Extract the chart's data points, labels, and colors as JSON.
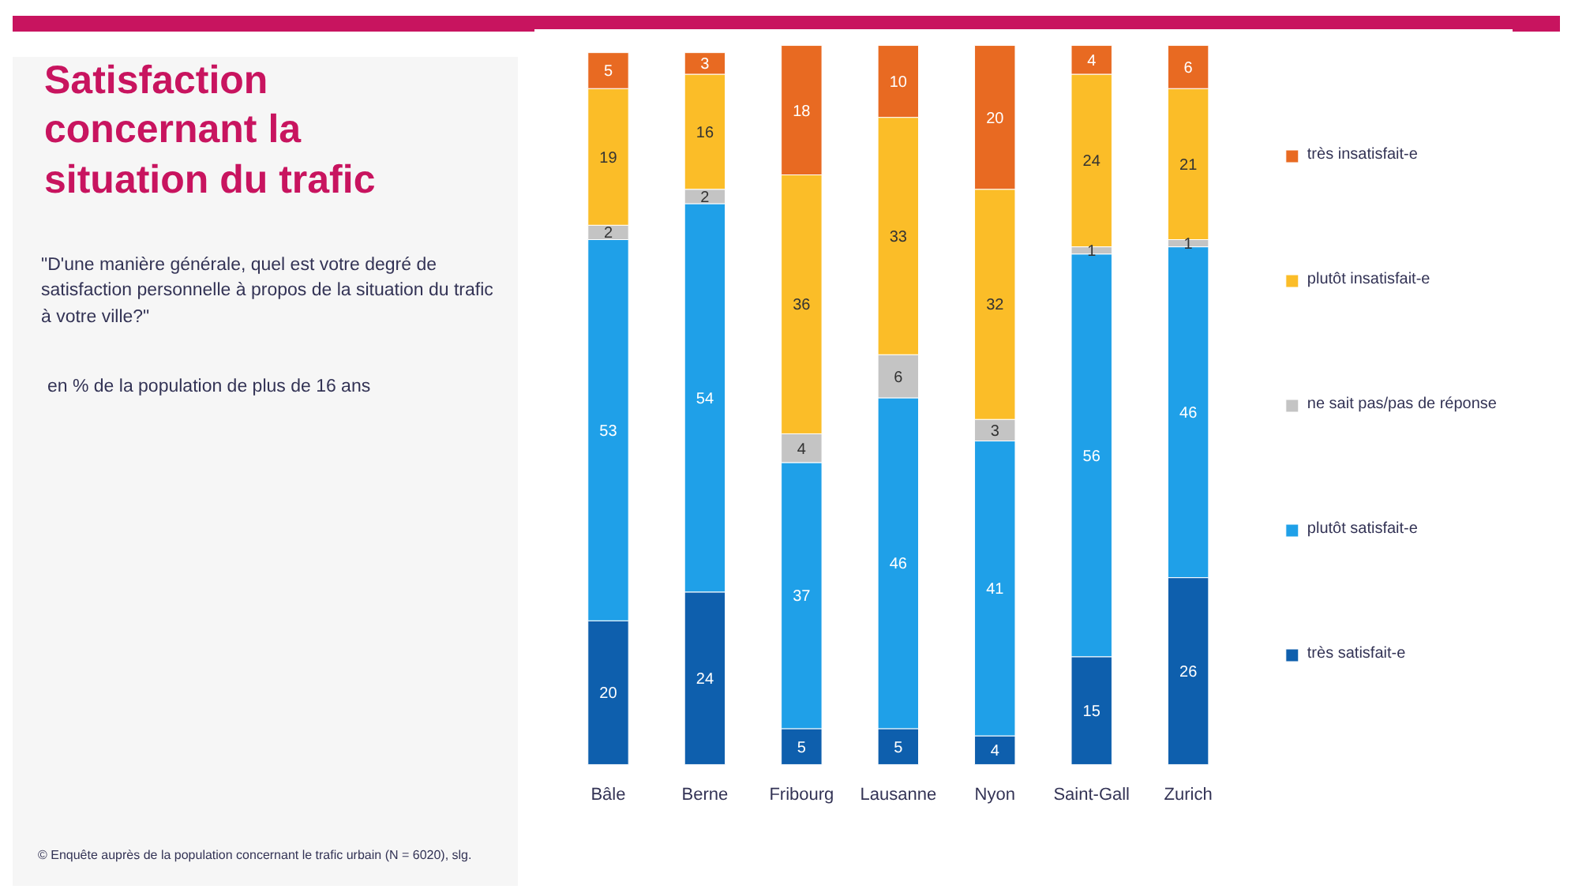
{
  "chart_data": {
    "type": "bar",
    "stacked": true,
    "data_labels": true,
    "legend": "right",
    "grid": false,
    "title": "Satisfaction concernant la situation du trafic",
    "subtitle": "\"D'une manière générale, quel est votre degré de satisfaction personnelle à propos de la situation du trafic à votre ville?\"",
    "annotations": [
      "en % de la population de plus de 16 ans",
      "© Enquête auprès de la population concernant le trafic urbain (N = 6020), slg."
    ],
    "categories": [
      "Bâle",
      "Berne",
      "Fribourg",
      "Lausanne",
      "Nyon",
      "Saint-Gall",
      "Zurich"
    ],
    "series": [
      {
        "name": "très satisfait-e",
        "color": "#0e5fad",
        "values": [
          20,
          24,
          5,
          5,
          4,
          15,
          26
        ]
      },
      {
        "name": "plutôt satisfait-e",
        "color": "#1fa0e8",
        "values": [
          53,
          54,
          37,
          46,
          41,
          56,
          46
        ]
      },
      {
        "name": "ne sait pas/pas de réponse",
        "color": "#c4c4c4",
        "values": [
          2,
          2,
          4,
          6,
          3,
          1,
          1
        ]
      },
      {
        "name": "plutôt insatisfait-e",
        "color": "#fbbd28",
        "values": [
          19,
          16,
          36,
          33,
          32,
          24,
          21
        ]
      },
      {
        "name": "très insatisfait-e",
        "color": "#e86a22",
        "values": [
          5,
          3,
          18,
          10,
          20,
          4,
          6
        ]
      }
    ]
  }
}
